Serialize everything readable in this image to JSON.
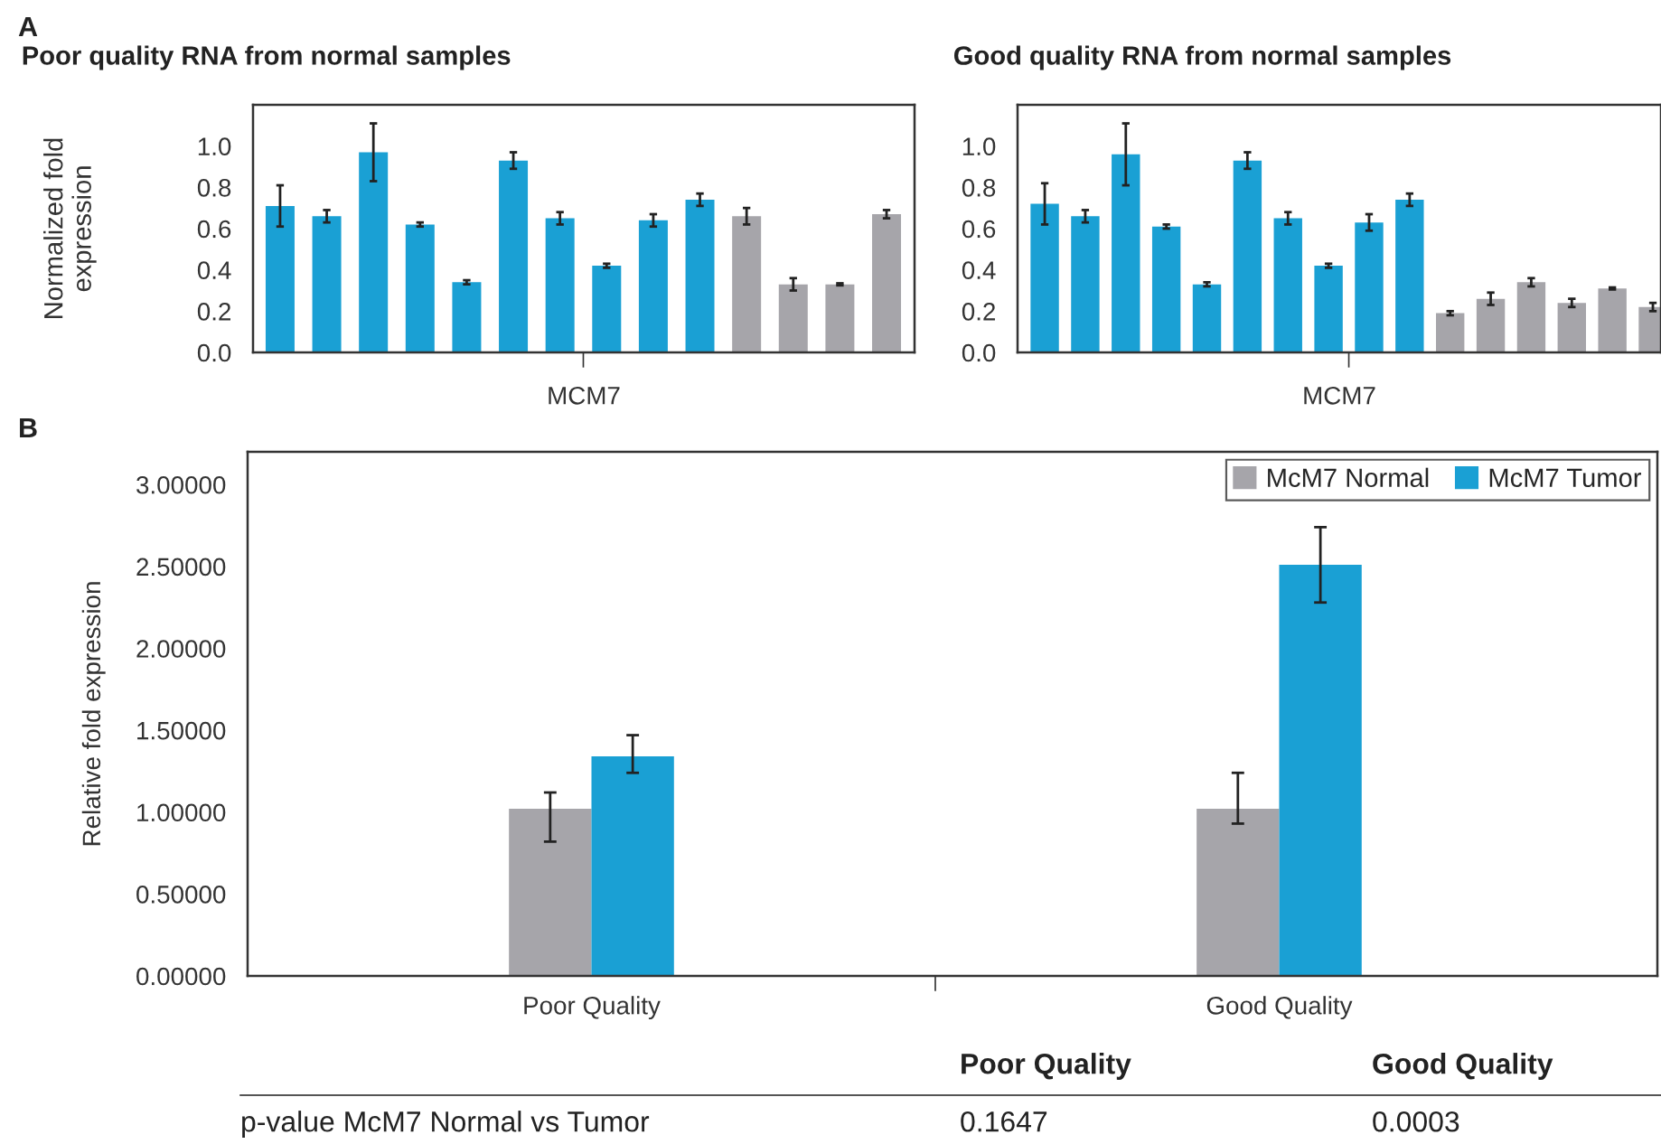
{
  "chart_data": [
    {
      "type": "bar",
      "title": "Poor quality RNA from normal samples",
      "ylabel": "Normalized fold\nexpression",
      "xlabel": "MCM7",
      "annotations": [
        "A"
      ],
      "categories": [
        null,
        null,
        null,
        null,
        null,
        null,
        null,
        null,
        null,
        null,
        null,
        null,
        null,
        null
      ],
      "values": [
        0.71,
        0.66,
        0.97,
        0.62,
        0.34,
        0.93,
        0.65,
        0.42,
        0.64,
        0.74,
        0.66,
        0.33,
        0.33,
        0.67
      ],
      "errors": [
        0.1,
        0.03,
        0.14,
        0.01,
        0.01,
        0.04,
        0.03,
        0.01,
        0.03,
        0.03,
        0.04,
        0.03,
        0.005,
        0.02
      ],
      "colors": [
        "#1aa0d4",
        "#1aa0d4",
        "#1aa0d4",
        "#1aa0d4",
        "#1aa0d4",
        "#1aa0d4",
        "#1aa0d4",
        "#1aa0d4",
        "#1aa0d4",
        "#1aa0d4",
        "#a6a5aa",
        "#a6a5aa",
        "#a6a5aa",
        "#a6a5aa"
      ],
      "ylim": [
        0,
        1.2
      ],
      "yticks": [
        {
          "value": 0,
          "label": "0.0"
        },
        {
          "value": 0.2,
          "label": "0.2"
        },
        {
          "value": 0.4,
          "label": "0.4"
        },
        {
          "value": 0.6,
          "label": "0.6"
        },
        {
          "value": 0.8,
          "label": "0.8"
        },
        {
          "value": 1.0,
          "label": "1.0"
        }
      ]
    },
    {
      "type": "bar",
      "title": "Good quality RNA from normal samples",
      "xlabel": "MCM7",
      "categories": [
        null,
        null,
        null,
        null,
        null,
        null,
        null,
        null,
        null,
        null,
        null,
        null,
        null,
        null,
        null,
        null
      ],
      "values": [
        0.72,
        0.66,
        0.96,
        0.61,
        0.33,
        0.93,
        0.65,
        0.42,
        0.63,
        0.74,
        0.19,
        0.26,
        0.34,
        0.24,
        0.31,
        0.22
      ],
      "errors": [
        0.1,
        0.03,
        0.15,
        0.01,
        0.01,
        0.04,
        0.03,
        0.01,
        0.04,
        0.03,
        0.01,
        0.03,
        0.02,
        0.02,
        0.005,
        0.02
      ],
      "colors": [
        "#1aa0d4",
        "#1aa0d4",
        "#1aa0d4",
        "#1aa0d4",
        "#1aa0d4",
        "#1aa0d4",
        "#1aa0d4",
        "#1aa0d4",
        "#1aa0d4",
        "#1aa0d4",
        "#a6a5aa",
        "#a6a5aa",
        "#a6a5aa",
        "#a6a5aa",
        "#a6a5aa",
        "#a6a5aa"
      ],
      "ylim": [
        0,
        1.2
      ],
      "yticks": [
        {
          "value": 0,
          "label": "0.0"
        },
        {
          "value": 0.2,
          "label": "0.2"
        },
        {
          "value": 0.4,
          "label": "0.4"
        },
        {
          "value": 0.6,
          "label": "0.6"
        },
        {
          "value": 0.8,
          "label": "0.8"
        },
        {
          "value": 1.0,
          "label": "1.0"
        }
      ]
    },
    {
      "type": "bar",
      "ylabel": "Relative fold expression",
      "legend": "top right",
      "annotations": [
        "B",
        "Poor Quality",
        "Good Quality",
        "p-value McM7 Normal vs Tumor",
        "0.1647",
        "0.0003"
      ],
      "categories": [
        "Poor Quality",
        "Good Quality"
      ],
      "series": [
        {
          "name": "McM7 Normal",
          "color": "#a6a5aa",
          "values": [
            1.02,
            1.02
          ],
          "errors": [
            [
              0.82,
              1.12
            ],
            [
              0.93,
              1.24
            ]
          ]
        },
        {
          "name": "McM7 Tumor",
          "color": "#1aa0d4",
          "values": [
            1.34,
            2.51
          ],
          "errors": [
            [
              1.24,
              1.47
            ],
            [
              2.28,
              2.74
            ]
          ]
        }
      ],
      "ylim": [
        0,
        3.2
      ],
      "yticks": [
        {
          "value": 0,
          "label": "0.00000"
        },
        {
          "value": 0.5,
          "label": "0.50000"
        },
        {
          "value": 1.0,
          "label": "1.00000"
        },
        {
          "value": 1.5,
          "label": "1.50000"
        },
        {
          "value": 2.0,
          "label": "2.00000"
        },
        {
          "value": 2.5,
          "label": "2.50000"
        },
        {
          "value": 3.0,
          "label": "3.00000"
        }
      ]
    }
  ]
}
